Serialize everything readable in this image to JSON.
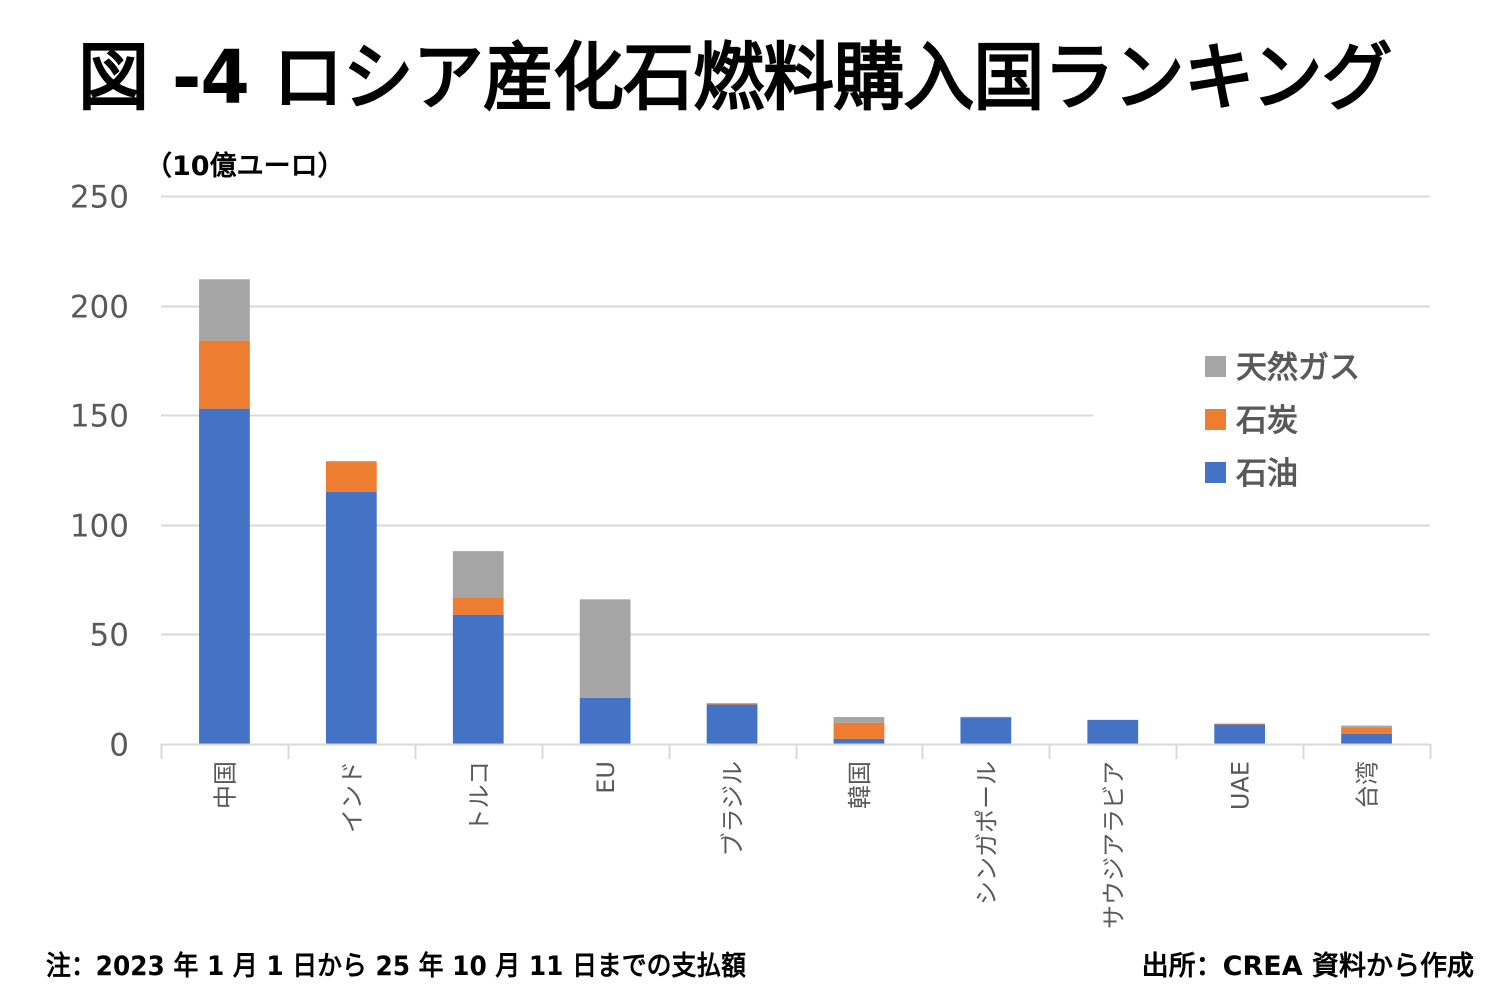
{
  "title": "図 -4 ロシア産化石燃料購入国ランキング",
  "note": "注：2023 年 1 月 1 日から 25 年 10 月 11 日までの支払額",
  "source": "出所：CREA 資料から作成",
  "chart_data": {
    "type": "bar",
    "stacked": true,
    "title": "図 -4 ロシア産化石燃料購入国ランキング",
    "ylabel": "（10億ユーロ）",
    "xlabel": "",
    "ylim": [
      0,
      250
    ],
    "yticks": [
      0,
      50,
      100,
      150,
      200,
      250
    ],
    "grid": true,
    "legend_position": "right",
    "categories": [
      "中国",
      "インド",
      "トルコ",
      "EU",
      "ブラジル",
      "韓国",
      "シンガポール",
      "サウジアラビア",
      "UAE",
      "台湾"
    ],
    "series": [
      {
        "name": "石油",
        "color": "#4472C4",
        "values": [
          153,
          115,
          59,
          21,
          18,
          2.4,
          12.2,
          11,
          9,
          4.7
        ]
      },
      {
        "name": "石炭",
        "color": "#ED7D31",
        "values": [
          31,
          14,
          8,
          0,
          0.6,
          7.3,
          0,
          0,
          0.3,
          2.9
        ]
      },
      {
        "name": "天然ガス",
        "color": "#A5A5A5",
        "values": [
          28,
          0,
          21,
          45,
          0,
          2.6,
          0.2,
          0,
          0,
          0.8
        ]
      }
    ],
    "legend_order": [
      "天然ガス",
      "石炭",
      "石油"
    ]
  }
}
